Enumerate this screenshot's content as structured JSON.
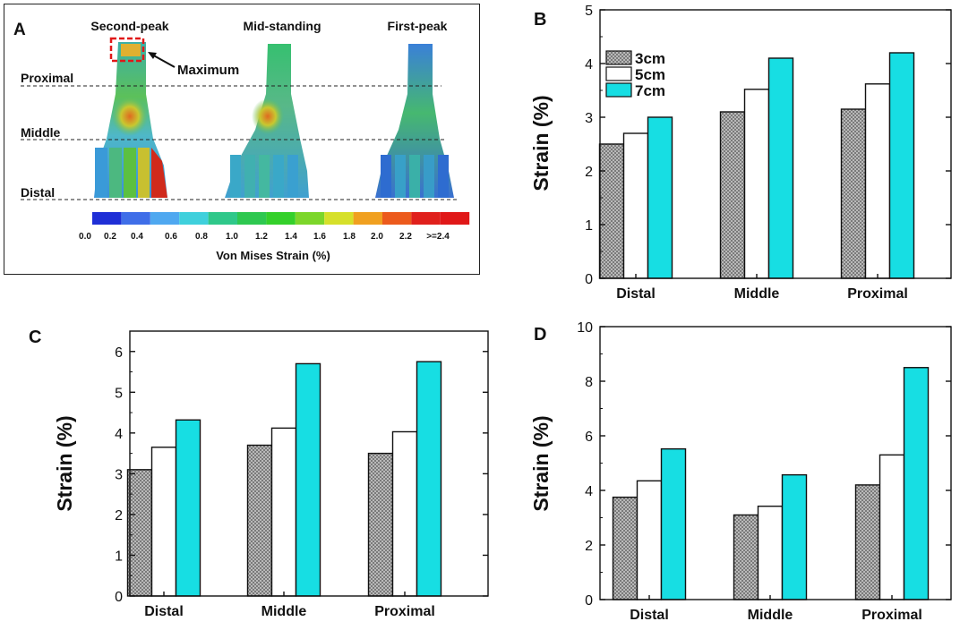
{
  "panel_a": {
    "letter": "A",
    "titles": [
      "Second-peak",
      "Mid-standing",
      "First-peak"
    ],
    "levels": [
      "Proximal",
      "Middle",
      "Distal"
    ],
    "maximum_label": "Maximum",
    "colorbar_ticks": [
      "0.0",
      "0.2",
      "0.4",
      "0.6",
      "0.8",
      "1.0",
      "1.2",
      "1.4",
      "1.6",
      "1.8",
      "2.0",
      "2.2",
      ">=2.4"
    ],
    "colorbar_colors": [
      "#1f2fd6",
      "#3f6ee8",
      "#4fa8f0",
      "#3fd0dc",
      "#2fc88a",
      "#2ec850",
      "#34d02a",
      "#7cd62a",
      "#d6e02a",
      "#f0a020",
      "#ec5a1c",
      "#e0201c",
      "#e01818"
    ],
    "colorbar_title": "Von Mises Strain (%)"
  },
  "legend": {
    "colors": {
      "c3": "#b9b9b9",
      "c5": "#ffffff",
      "c7": "#17dee3"
    }
  },
  "chart_data": [
    {
      "panel": "B",
      "type": "bar",
      "categories": [
        "Distal",
        "Middle",
        "Proximal"
      ],
      "series": [
        {
          "name": "3cm",
          "values": [
            2.5,
            3.1,
            3.15
          ]
        },
        {
          "name": "5cm",
          "values": [
            2.7,
            3.52,
            3.62
          ]
        },
        {
          "name": "7cm",
          "values": [
            3.0,
            4.1,
            4.2
          ]
        }
      ],
      "ylabel": "Strain (%)",
      "ylim": [
        0,
        5
      ],
      "yticks": [
        0,
        1,
        2,
        3,
        4,
        5
      ],
      "legend_position": "top-left"
    },
    {
      "panel": "C",
      "type": "bar",
      "categories": [
        "Distal",
        "Middle",
        "Proximal"
      ],
      "series": [
        {
          "name": "3cm",
          "values": [
            3.1,
            3.7,
            3.5
          ]
        },
        {
          "name": "5cm",
          "values": [
            3.65,
            4.12,
            4.03
          ]
        },
        {
          "name": "7cm",
          "values": [
            4.32,
            5.7,
            5.75
          ]
        }
      ],
      "ylabel": "Strain (%)",
      "ylim": [
        0,
        6.5
      ],
      "yticks": [
        0,
        1,
        2,
        3,
        4,
        5,
        6
      ]
    },
    {
      "panel": "D",
      "type": "bar",
      "categories": [
        "Distal",
        "Middle",
        "Proximal"
      ],
      "series": [
        {
          "name": "3cm",
          "values": [
            3.75,
            3.1,
            4.2
          ]
        },
        {
          "name": "5cm",
          "values": [
            4.35,
            3.42,
            5.3
          ]
        },
        {
          "name": "7cm",
          "values": [
            5.52,
            4.57,
            8.5
          ]
        }
      ],
      "ylabel": "Strain (%)",
      "ylim": [
        0,
        10
      ],
      "yticks": [
        0,
        2,
        4,
        6,
        8,
        10
      ]
    }
  ]
}
